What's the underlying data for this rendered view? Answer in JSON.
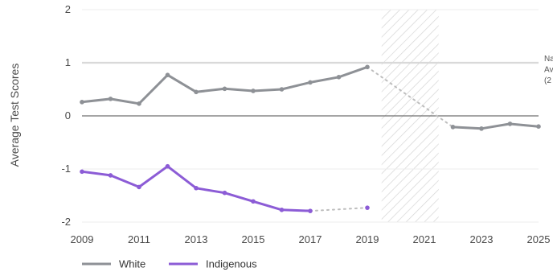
{
  "chart_data": {
    "type": "line",
    "title": "",
    "xlabel": "",
    "ylabel": "Average Test Scores",
    "xlim": [
      2009,
      2025
    ],
    "ylim": [
      -2,
      2
    ],
    "x_ticks": [
      "2009",
      "2011",
      "2013",
      "2015",
      "2017",
      "2019",
      "2021",
      "2023",
      "2025"
    ],
    "y_ticks": [
      "2",
      "1",
      "0",
      "-1",
      "-2"
    ],
    "grid": "horizontal",
    "legend_position": "bottom-left",
    "reference_line": {
      "value": 1,
      "label_lines": [
        "Na",
        "Av",
        "(2"
      ],
      "color": "#d9d9d9"
    },
    "shaded_period": {
      "x_start": 2019.5,
      "x_end": 2021.5,
      "pattern": "diagonal-hatch"
    },
    "series": [
      {
        "name": "White",
        "color": "#8e9196",
        "points": [
          [
            2009,
            0.26
          ],
          [
            2010,
            0.32
          ],
          [
            2011,
            0.23
          ],
          [
            2012,
            0.77
          ],
          [
            2013,
            0.45
          ],
          [
            2014,
            0.51
          ],
          [
            2015,
            0.47
          ],
          [
            2016,
            0.5
          ],
          [
            2017,
            0.63
          ],
          [
            2018,
            0.73
          ],
          [
            2019,
            0.92
          ],
          [
            2022,
            -0.21
          ],
          [
            2023,
            -0.24
          ],
          [
            2024,
            -0.15
          ],
          [
            2025,
            -0.2
          ]
        ],
        "gap_after_x": 2019
      },
      {
        "name": "Indigenous",
        "color": "#8c5cd6",
        "points": [
          [
            2009,
            -1.05
          ],
          [
            2010,
            -1.12
          ],
          [
            2011,
            -1.34
          ],
          [
            2012,
            -0.95
          ],
          [
            2013,
            -1.36
          ],
          [
            2014,
            -1.45
          ],
          [
            2015,
            -1.61
          ],
          [
            2016,
            -1.77
          ],
          [
            2017,
            -1.79
          ],
          [
            2019,
            -1.73
          ]
        ],
        "gap_after_x": 2017
      }
    ]
  }
}
